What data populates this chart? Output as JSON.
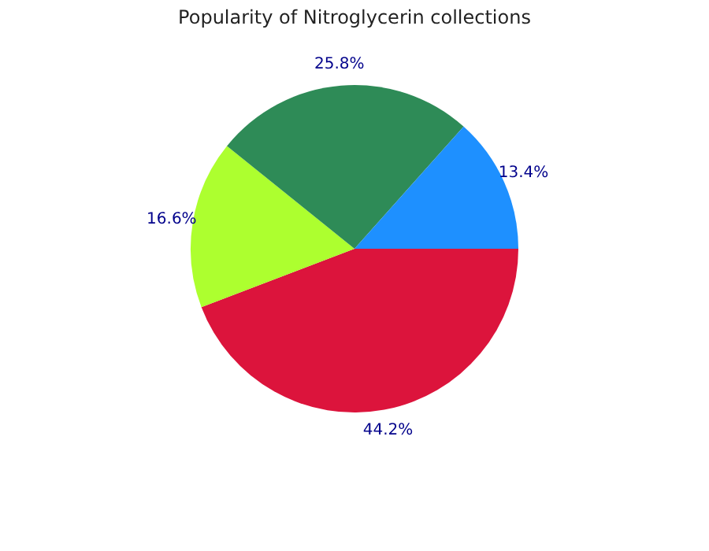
{
  "chart_data": {
    "type": "pie",
    "title": "Popularity of Nitroglycerin collections",
    "categories": [
      null,
      null,
      null,
      null
    ],
    "values": [
      44.2,
      16.6,
      25.8,
      13.4
    ],
    "colors": [
      "#dc143c",
      "#adff2f",
      "#2e8b57",
      "#1e90ff"
    ],
    "value_labels": [
      "44.2%",
      "16.6%",
      "25.8%",
      "13.4%"
    ]
  }
}
